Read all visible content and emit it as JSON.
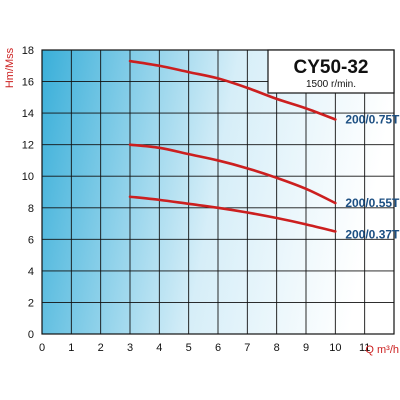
{
  "chart_data": {
    "type": "line",
    "title": "CY50-32",
    "subtitle": "1500 r/min.",
    "xlabel": "Q m³/h",
    "ylabel": "Hm/Mss",
    "xlim": [
      0,
      12
    ],
    "ylim": [
      0,
      18
    ],
    "x_ticks": [
      "0",
      "1",
      "2",
      "3",
      "4",
      "5",
      "6",
      "7",
      "8",
      "9",
      "10",
      "11"
    ],
    "y_ticks": [
      "0",
      "2",
      "4",
      "6",
      "8",
      "10",
      "12",
      "14",
      "16",
      "18"
    ],
    "grid": true,
    "series": [
      {
        "name": "200/0.75T",
        "x": [
          3,
          4,
          5,
          6,
          7,
          8,
          9,
          10
        ],
        "y": [
          17.3,
          17.0,
          16.6,
          16.2,
          15.6,
          14.9,
          14.3,
          13.6
        ]
      },
      {
        "name": "200/0.55T",
        "x": [
          3,
          4,
          5,
          6,
          7,
          8,
          9,
          10
        ],
        "y": [
          12.0,
          11.8,
          11.4,
          11.0,
          10.5,
          9.9,
          9.2,
          8.3
        ]
      },
      {
        "name": "200/0.37T",
        "x": [
          3,
          4,
          5,
          6,
          7,
          8,
          9,
          10
        ],
        "y": [
          8.7,
          8.5,
          8.25,
          8.0,
          7.7,
          7.35,
          6.95,
          6.5
        ]
      }
    ]
  },
  "colors": {
    "curve": "#cc1f1f",
    "label": "#1c4f82",
    "axis_title": "#cc1f1f",
    "gradient_left": "#3aafd9",
    "gradient_right": "#ffffff"
  }
}
